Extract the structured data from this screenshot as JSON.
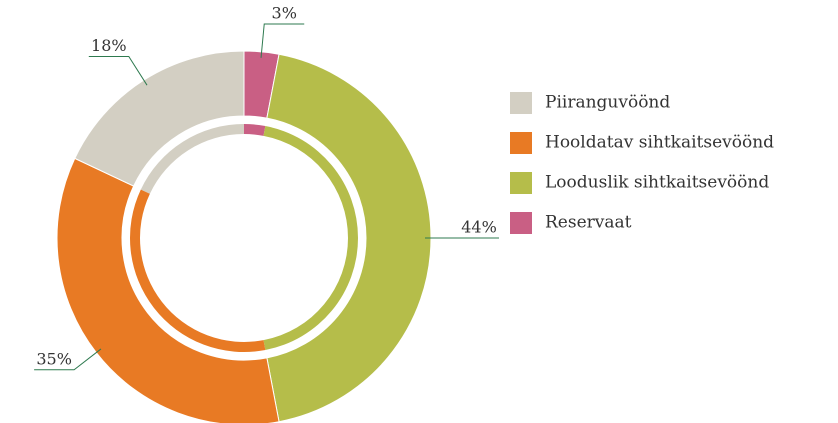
{
  "chart_data": {
    "type": "donut",
    "categories": [
      "Piiranguvöönd",
      "Hooldatav sihtkaitsevöönd",
      "Looduslik sihtkaitsevöönd",
      "Reservaat"
    ],
    "values": [
      18,
      35,
      44,
      3
    ],
    "value_labels": [
      "18%",
      "35%",
      "44%",
      "3%"
    ],
    "colors": [
      "#d3cfc3",
      "#e87a24",
      "#b5bd4a",
      "#c95f84"
    ],
    "legend": "right"
  }
}
